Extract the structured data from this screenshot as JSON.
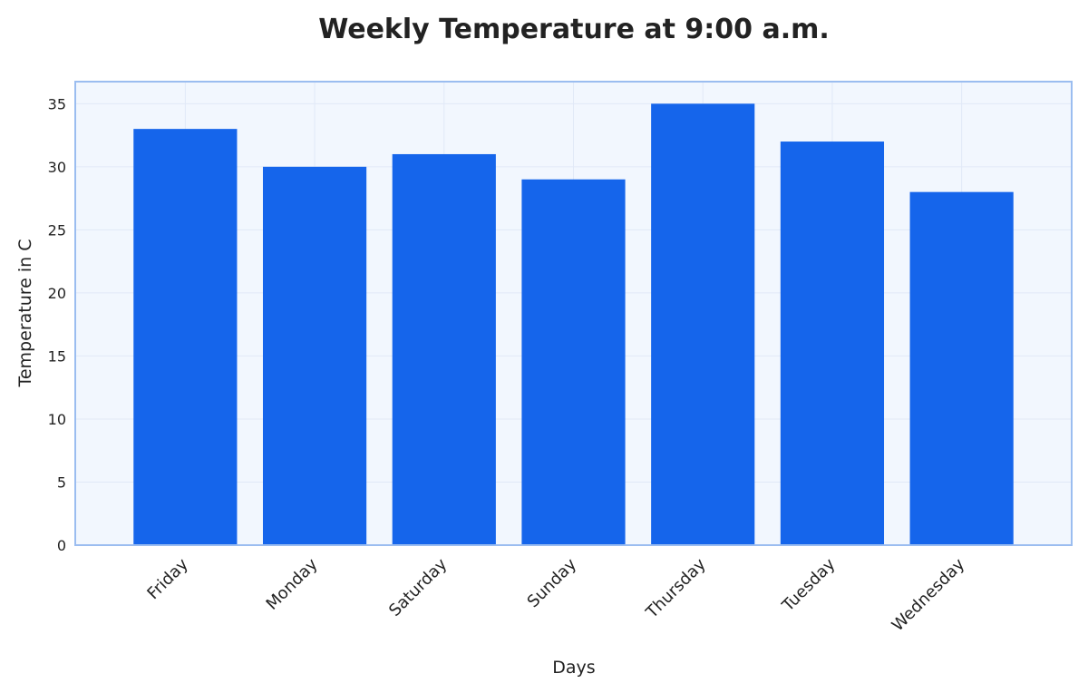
{
  "chart_data": {
    "type": "bar",
    "title": "Weekly Temperature at 9:00 a.m.",
    "xlabel": "Days",
    "ylabel": "Temperature in C",
    "categories": [
      "Friday",
      "Monday",
      "Saturday",
      "Sunday",
      "Thursday",
      "Tuesday",
      "Wednesday"
    ],
    "values": [
      33,
      30,
      31,
      29,
      35,
      32,
      28
    ],
    "ylim": [
      0,
      36.75
    ],
    "yticks": [
      0,
      5,
      10,
      15,
      20,
      25,
      30,
      35
    ],
    "grid": true,
    "legend": "none",
    "colors": {
      "bar": "#1565EB",
      "plot_background": "#F2F7FE",
      "plot_border": "#9BBDF0",
      "grid": "#E1E9F7",
      "text": "#222222"
    }
  }
}
